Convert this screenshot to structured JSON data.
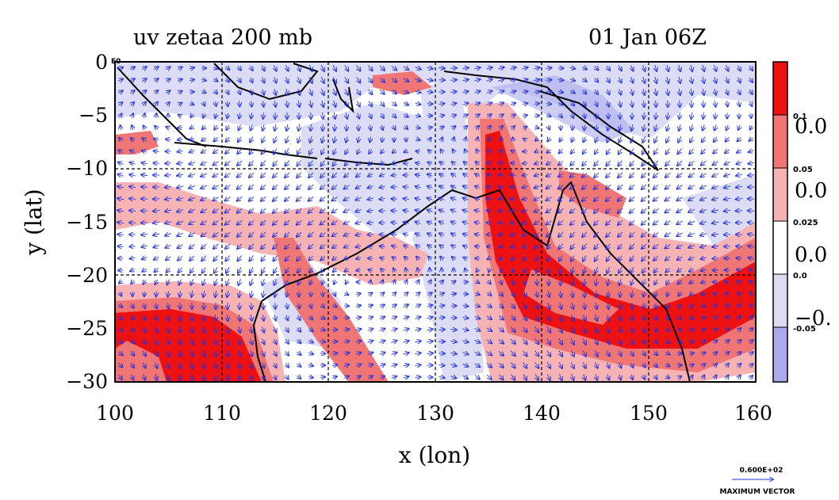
{
  "title": "uv zetaa 200 mb",
  "timestamp": "01 Jan 06Z",
  "x_axis": {
    "label": "x (lon)",
    "ticks": [
      "100",
      "110",
      "120",
      "130",
      "140",
      "150",
      "160"
    ]
  },
  "y_axis": {
    "label": "y (lat)",
    "ticks": [
      "0",
      "−5",
      "−10",
      "−15",
      "−20",
      "−25",
      "−30"
    ]
  },
  "colorbar": {
    "small_labels": [
      "0.1",
      "0.05",
      "0.025",
      "0.0",
      "-0.05"
    ],
    "overlay_labels": [
      "0.0",
      "0.0",
      "0.0",
      "−0."
    ],
    "colors": [
      "#ee1111",
      "#f07575",
      "#f7b3b3",
      "#ffffff",
      "#dcdcf6",
      "#aaaaee"
    ]
  },
  "corner_label": "E0",
  "reference_vector": {
    "magnitude": "0.600E+02",
    "caption": "MAXIMUM VECTOR"
  },
  "colors": {
    "strong_positive": "#ee1111",
    "medium_positive": "#f07575",
    "weak_positive": "#f7b3b3",
    "weak_negative": "#dcdcf6",
    "strong_negative": "#aaaaee",
    "vector": "#2233dd",
    "coast": "#000000"
  }
}
